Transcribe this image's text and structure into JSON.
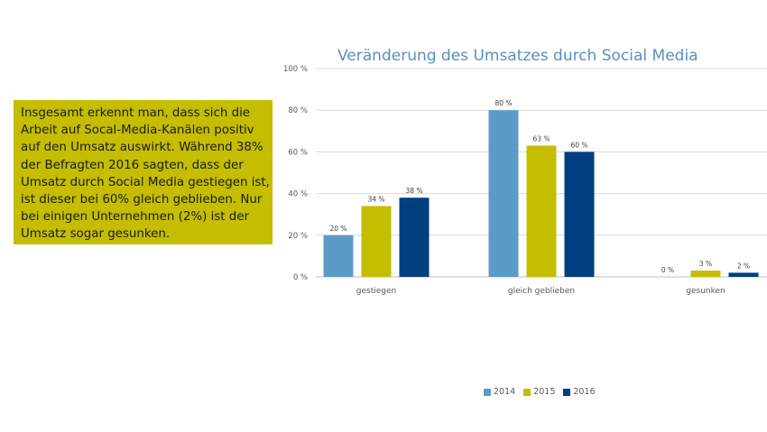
{
  "textbox": {
    "lines": [
      "Insgesamt erkennt man, dass sich die",
      "Arbeit auf Socal-Media-Kanälen positiv",
      "auf den Umsatz auswirkt. Während 38%",
      "der Befragten 2016 sagten, dass der",
      "Umsatz durch Social Media gestiegen ist,",
      "ist dieser bei 60% gleich geblieben. Nur",
      "bei einigen Unternehmen (2%) ist der",
      "Umsatz sogar gesunken."
    ]
  },
  "chart_data": {
    "type": "bar",
    "title": "Veränderung des Umsatzes durch Social Media",
    "categories": [
      "gestiegen",
      "gleich geblieben",
      "gesunken"
    ],
    "series": [
      {
        "name": "2014",
        "values": [
          20,
          80,
          0
        ],
        "color": "#5b9bc8"
      },
      {
        "name": "2015",
        "values": [
          34,
          63,
          3
        ],
        "color": "#c4bd00"
      },
      {
        "name": "2016",
        "values": [
          38,
          60,
          2
        ],
        "color": "#003f7f"
      }
    ],
    "ylim": [
      0,
      100
    ],
    "yticks": [
      0,
      20,
      40,
      60,
      80,
      100
    ],
    "value_suffix": " %",
    "grid": true,
    "legend_position": "bottom"
  }
}
